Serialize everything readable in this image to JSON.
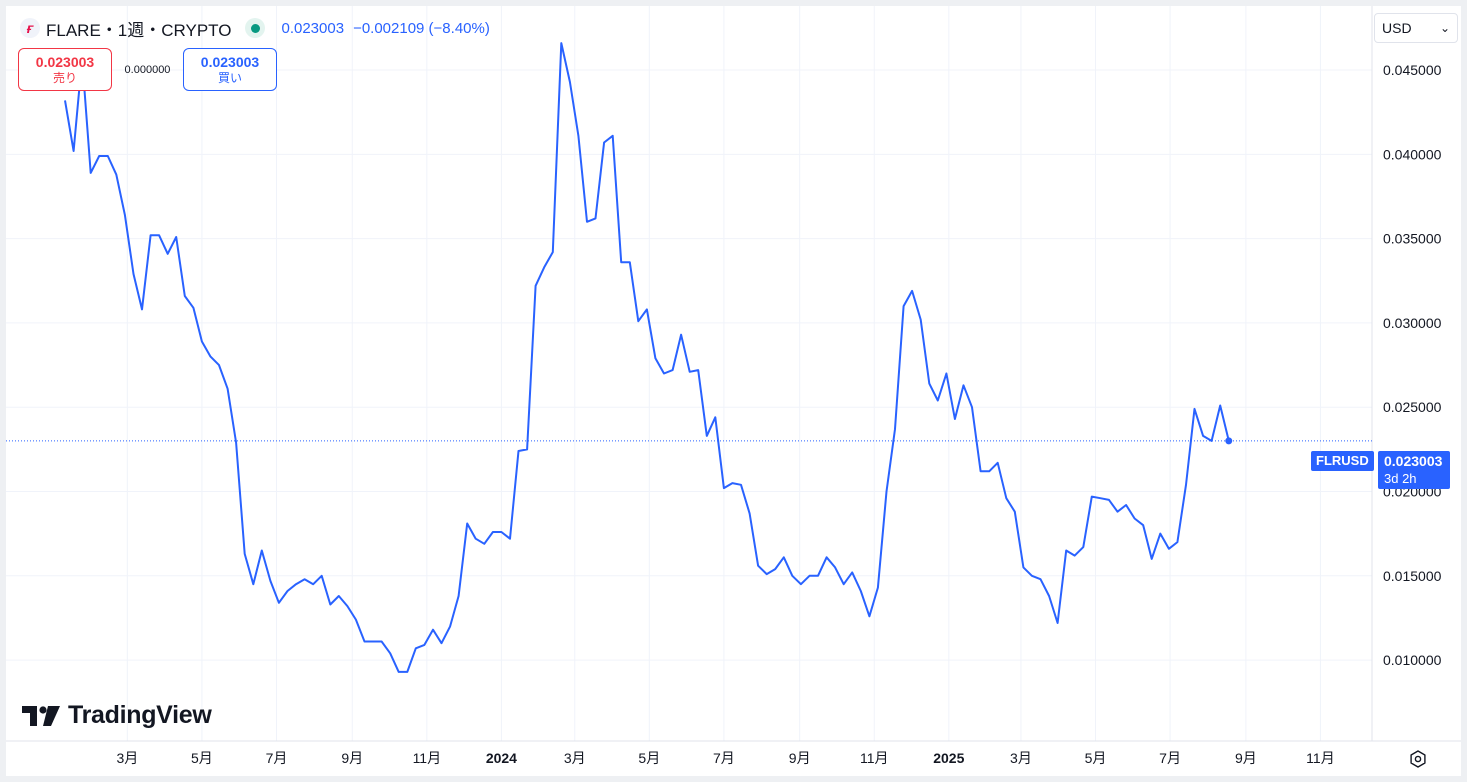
{
  "legend": {
    "symbol": "FLARE・1週・CRYPTO",
    "price": "0.023003",
    "change": "−0.002109 (−8.40%)"
  },
  "trade": {
    "sell_price": "0.023003",
    "sell_label": "売り",
    "spread": "0.000000",
    "buy_price": "0.023003",
    "buy_label": "買い"
  },
  "currency": {
    "selected": "USD"
  },
  "branding": {
    "logo_text": "TradingView"
  },
  "last_price": {
    "symbol_label": "FLRUSD",
    "price": "0.023003",
    "countdown": "3d 2h"
  },
  "colors": {
    "line": "#2962ff",
    "sell": "#f23645",
    "buy": "#2962ff",
    "grid": "#f0f3fa",
    "status": "#089981"
  },
  "icons": {
    "logo": "flare-logo-icon",
    "status": "market-open-dot-icon",
    "dropdown": "chevron-down-icon",
    "settings": "gear-icon"
  },
  "chart_data": {
    "type": "line",
    "interval": "1週",
    "x_start": "2023-01-09",
    "x_end": "2025-11-17",
    "x_ticks": [
      {
        "date": "2023-03-01",
        "label": "3月",
        "bold": false
      },
      {
        "date": "2023-05-01",
        "label": "5月",
        "bold": false
      },
      {
        "date": "2023-07-01",
        "label": "7月",
        "bold": false
      },
      {
        "date": "2023-09-01",
        "label": "9月",
        "bold": false
      },
      {
        "date": "2023-11-01",
        "label": "11月",
        "bold": false
      },
      {
        "date": "2024-01-01",
        "label": "2024",
        "bold": true
      },
      {
        "date": "2024-03-01",
        "label": "3月",
        "bold": false
      },
      {
        "date": "2024-05-01",
        "label": "5月",
        "bold": false
      },
      {
        "date": "2024-07-01",
        "label": "7月",
        "bold": false
      },
      {
        "date": "2024-09-01",
        "label": "9月",
        "bold": false
      },
      {
        "date": "2024-11-01",
        "label": "11月",
        "bold": false
      },
      {
        "date": "2025-01-01",
        "label": "2025",
        "bold": true
      },
      {
        "date": "2025-03-01",
        "label": "3月",
        "bold": false
      },
      {
        "date": "2025-05-01",
        "label": "5月",
        "bold": false
      },
      {
        "date": "2025-07-01",
        "label": "7月",
        "bold": false
      },
      {
        "date": "2025-09-01",
        "label": "9月",
        "bold": false
      },
      {
        "date": "2025-11-01",
        "label": "11月",
        "bold": false
      }
    ],
    "y_ticks": [
      {
        "value": 0.01,
        "label": "0.010000"
      },
      {
        "value": 0.015,
        "label": "0.015000"
      },
      {
        "value": 0.02,
        "label": "0.020000"
      },
      {
        "value": 0.025,
        "label": "0.025000"
      },
      {
        "value": 0.03,
        "label": "0.030000"
      },
      {
        "value": 0.035,
        "label": "0.035000"
      },
      {
        "value": 0.04,
        "label": "0.040000"
      },
      {
        "value": 0.045,
        "label": "0.045000"
      }
    ],
    "ylim": [
      0.0052,
      0.0488
    ],
    "last_value": 0.023003,
    "grid": true,
    "points": [
      [
        "2023-01-09",
        0.0432
      ],
      [
        "2023-01-16",
        0.0402
      ],
      [
        "2023-01-23",
        0.0457
      ],
      [
        "2023-01-30",
        0.0389
      ],
      [
        "2023-02-06",
        0.0399
      ],
      [
        "2023-02-13",
        0.0399
      ],
      [
        "2023-02-20",
        0.0388
      ],
      [
        "2023-02-27",
        0.0364
      ],
      [
        "2023-03-06",
        0.0329
      ],
      [
        "2023-03-13",
        0.0308
      ],
      [
        "2023-03-20",
        0.0352
      ],
      [
        "2023-03-27",
        0.0352
      ],
      [
        "2023-04-03",
        0.0341
      ],
      [
        "2023-04-10",
        0.0351
      ],
      [
        "2023-04-17",
        0.0316
      ],
      [
        "2023-04-24",
        0.0309
      ],
      [
        "2023-05-01",
        0.0289
      ],
      [
        "2023-05-08",
        0.028
      ],
      [
        "2023-05-15",
        0.0275
      ],
      [
        "2023-05-22",
        0.0261
      ],
      [
        "2023-05-29",
        0.0229
      ],
      [
        "2023-06-05",
        0.0163
      ],
      [
        "2023-06-12",
        0.0145
      ],
      [
        "2023-06-19",
        0.0165
      ],
      [
        "2023-06-26",
        0.0147
      ],
      [
        "2023-07-03",
        0.0134
      ],
      [
        "2023-07-10",
        0.0141
      ],
      [
        "2023-07-17",
        0.0145
      ],
      [
        "2023-07-24",
        0.0148
      ],
      [
        "2023-07-31",
        0.0145
      ],
      [
        "2023-08-07",
        0.015
      ],
      [
        "2023-08-14",
        0.0133
      ],
      [
        "2023-08-21",
        0.0138
      ],
      [
        "2023-08-28",
        0.0132
      ],
      [
        "2023-09-04",
        0.0124
      ],
      [
        "2023-09-11",
        0.0111
      ],
      [
        "2023-09-18",
        0.0111
      ],
      [
        "2023-09-25",
        0.0111
      ],
      [
        "2023-10-02",
        0.0104
      ],
      [
        "2023-10-09",
        0.0093
      ],
      [
        "2023-10-16",
        0.0093
      ],
      [
        "2023-10-23",
        0.0107
      ],
      [
        "2023-10-30",
        0.0109
      ],
      [
        "2023-11-06",
        0.0118
      ],
      [
        "2023-11-13",
        0.011
      ],
      [
        "2023-11-20",
        0.012
      ],
      [
        "2023-11-27",
        0.0138
      ],
      [
        "2023-12-04",
        0.0181
      ],
      [
        "2023-12-11",
        0.0172
      ],
      [
        "2023-12-18",
        0.0169
      ],
      [
        "2023-12-25",
        0.0176
      ],
      [
        "2024-01-01",
        0.0176
      ],
      [
        "2024-01-08",
        0.0172
      ],
      [
        "2024-01-15",
        0.0224
      ],
      [
        "2024-01-22",
        0.0225
      ],
      [
        "2024-01-29",
        0.0322
      ],
      [
        "2024-02-05",
        0.0333
      ],
      [
        "2024-02-12",
        0.0342
      ],
      [
        "2024-02-19",
        0.0466
      ],
      [
        "2024-02-26",
        0.0443
      ],
      [
        "2024-03-04",
        0.0411
      ],
      [
        "2024-03-11",
        0.036
      ],
      [
        "2024-03-18",
        0.0362
      ],
      [
        "2024-03-25",
        0.0407
      ],
      [
        "2024-04-01",
        0.0411
      ],
      [
        "2024-04-08",
        0.0336
      ],
      [
        "2024-04-15",
        0.0336
      ],
      [
        "2024-04-22",
        0.0301
      ],
      [
        "2024-04-29",
        0.0308
      ],
      [
        "2024-05-06",
        0.0279
      ],
      [
        "2024-05-13",
        0.027
      ],
      [
        "2024-05-20",
        0.0272
      ],
      [
        "2024-05-27",
        0.0293
      ],
      [
        "2024-06-03",
        0.0271
      ],
      [
        "2024-06-10",
        0.0272
      ],
      [
        "2024-06-17",
        0.0233
      ],
      [
        "2024-06-24",
        0.0244
      ],
      [
        "2024-07-01",
        0.0202
      ],
      [
        "2024-07-08",
        0.0205
      ],
      [
        "2024-07-15",
        0.0204
      ],
      [
        "2024-07-22",
        0.0187
      ],
      [
        "2024-07-29",
        0.0156
      ],
      [
        "2024-08-05",
        0.0151
      ],
      [
        "2024-08-12",
        0.0154
      ],
      [
        "2024-08-19",
        0.0161
      ],
      [
        "2024-08-26",
        0.015
      ],
      [
        "2024-09-02",
        0.0145
      ],
      [
        "2024-09-09",
        0.015
      ],
      [
        "2024-09-16",
        0.015
      ],
      [
        "2024-09-23",
        0.0161
      ],
      [
        "2024-09-30",
        0.0155
      ],
      [
        "2024-10-07",
        0.0145
      ],
      [
        "2024-10-14",
        0.0152
      ],
      [
        "2024-10-21",
        0.0141
      ],
      [
        "2024-10-28",
        0.0126
      ],
      [
        "2024-11-04",
        0.0143
      ],
      [
        "2024-11-11",
        0.02
      ],
      [
        "2024-11-18",
        0.0237
      ],
      [
        "2024-11-25",
        0.031
      ],
      [
        "2024-12-02",
        0.0319
      ],
      [
        "2024-12-09",
        0.0302
      ],
      [
        "2024-12-16",
        0.0264
      ],
      [
        "2024-12-23",
        0.0254
      ],
      [
        "2024-12-30",
        0.027
      ],
      [
        "2025-01-06",
        0.0243
      ],
      [
        "2025-01-13",
        0.0263
      ],
      [
        "2025-01-20",
        0.025
      ],
      [
        "2025-01-27",
        0.0212
      ],
      [
        "2025-02-03",
        0.0212
      ],
      [
        "2025-02-10",
        0.0217
      ],
      [
        "2025-02-17",
        0.0196
      ],
      [
        "2025-02-24",
        0.0188
      ],
      [
        "2025-03-03",
        0.0155
      ],
      [
        "2025-03-10",
        0.015
      ],
      [
        "2025-03-17",
        0.0148
      ],
      [
        "2025-03-24",
        0.0138
      ],
      [
        "2025-03-31",
        0.0122
      ],
      [
        "2025-04-07",
        0.0165
      ],
      [
        "2025-04-14",
        0.0162
      ],
      [
        "2025-04-21",
        0.0167
      ],
      [
        "2025-04-28",
        0.0197
      ],
      [
        "2025-05-05",
        0.0196
      ],
      [
        "2025-05-12",
        0.0195
      ],
      [
        "2025-05-19",
        0.0188
      ],
      [
        "2025-05-26",
        0.0192
      ],
      [
        "2025-06-02",
        0.0184
      ],
      [
        "2025-06-09",
        0.018
      ],
      [
        "2025-06-16",
        0.016
      ],
      [
        "2025-06-23",
        0.0175
      ],
      [
        "2025-06-30",
        0.0166
      ],
      [
        "2025-07-07",
        0.017
      ],
      [
        "2025-07-14",
        0.0204
      ],
      [
        "2025-07-21",
        0.0249
      ],
      [
        "2025-07-28",
        0.0233
      ],
      [
        "2025-08-04",
        0.023
      ],
      [
        "2025-08-11",
        0.0251
      ],
      [
        "2025-08-18",
        0.023
      ]
    ]
  }
}
